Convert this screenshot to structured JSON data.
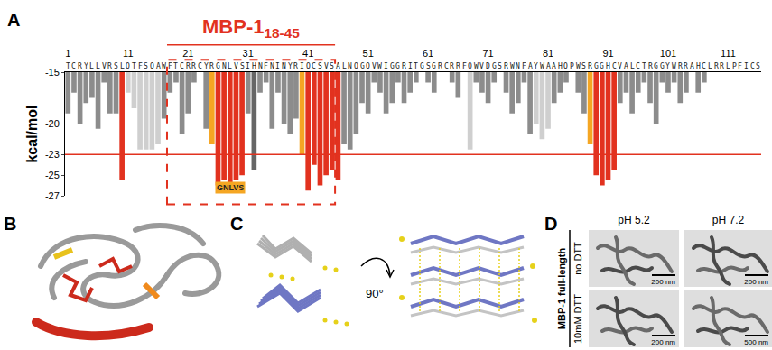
{
  "chart_data": {
    "type": "bar",
    "panel_label": "A",
    "title": "MBP-1",
    "title_subscript": "18-45",
    "y_label": "kcal/mol",
    "sequence": "TCRYLLVRSLQTFSQAWFTCRRCYRGNLVSIHNFNINYRIQCSVSALNQGQVWIGGRITGSGRCRRFQWVDGSRWNFAYWAAHQPWSRGGHCVALCTRGGYWRRAHCLRRLPFICS",
    "x": [
      1,
      2,
      3,
      4,
      5,
      6,
      7,
      8,
      9,
      10,
      11,
      12,
      13,
      14,
      15,
      16,
      17,
      18,
      19,
      20,
      21,
      22,
      23,
      24,
      25,
      26,
      27,
      28,
      29,
      30,
      31,
      32,
      33,
      34,
      35,
      36,
      37,
      38,
      39,
      40,
      41,
      42,
      43,
      44,
      45,
      46,
      47,
      48,
      49,
      50,
      51,
      52,
      53,
      54,
      55,
      56,
      57,
      58,
      59,
      60,
      61,
      62,
      63,
      64,
      65,
      66,
      67,
      68,
      69,
      70,
      71,
      72,
      73,
      74,
      75,
      76,
      77,
      78,
      79,
      80,
      81,
      82,
      83,
      84,
      85,
      86,
      87,
      88,
      89,
      90,
      91,
      92,
      93,
      94,
      95,
      96,
      97,
      98,
      99,
      100,
      101,
      102,
      103,
      104,
      105,
      106,
      107,
      108,
      109,
      110,
      111,
      112,
      113,
      114,
      115,
      116
    ],
    "values": [
      -19,
      -17,
      -20,
      -18,
      -17.5,
      -20.5,
      -16,
      -19,
      -19,
      -25.5,
      -17,
      -18.5,
      -22.5,
      -22.5,
      -22.5,
      -22,
      -19.5,
      -17,
      -16,
      -21,
      -19,
      -16,
      null,
      -20.5,
      -22,
      -26,
      -25.5,
      -26,
      -25.5,
      -25,
      -19,
      -24.5,
      -17,
      -16,
      -20.5,
      -17,
      -20,
      -21,
      -19.5,
      -23,
      -26.5,
      -24,
      -26,
      -25,
      -24.5,
      -25.5,
      -22,
      -22.5,
      -21,
      -18,
      -19,
      -16,
      -17,
      -19,
      -18,
      -16,
      -18,
      -17,
      -16,
      null,
      -16,
      -17,
      null,
      null,
      -16,
      -17.5,
      null,
      -22.5,
      -16,
      -17,
      -18,
      -16,
      null,
      -17,
      -19,
      -18,
      -16,
      -21,
      -20,
      -21.5,
      -20.5,
      -18,
      -17,
      -16,
      null,
      -17,
      -19,
      -22,
      -25,
      -26,
      -25.5,
      -24.5,
      -18,
      -17,
      -19,
      -17,
      -16,
      -18,
      -20,
      -16,
      -17,
      -16,
      -18,
      -17,
      null,
      -17,
      -16,
      null,
      null,
      null,
      null,
      null,
      null,
      null,
      null,
      null
    ],
    "colors": [
      "#8c8c8c",
      "#8c8c8c",
      "#8c8c8c",
      "#8c8c8c",
      "#8c8c8c",
      "#8c8c8c",
      "#8c8c8c",
      "#8c8c8c",
      "#8c8c8c",
      "#e2321f",
      "#cfcfcf",
      "#cfcfcf",
      "#cfcfcf",
      "#cfcfcf",
      "#cfcfcf",
      "#cfcfcf",
      "#8c8c8c",
      "#8c8c8c",
      "#8c8c8c",
      "#8c8c8c",
      "#8c8c8c",
      "#8c8c8c",
      "#8c8c8c",
      "#8c8c8c",
      "#f5a623",
      "#e2321f",
      "#e2321f",
      "#e2321f",
      "#e2321f",
      "#e2321f",
      "#8c8c8c",
      "#666666",
      "#8c8c8c",
      "#8c8c8c",
      "#8c8c8c",
      "#8c8c8c",
      "#8c8c8c",
      "#8c8c8c",
      "#8c8c8c",
      "#f5a623",
      "#e2321f",
      "#e2321f",
      "#e2321f",
      "#e2321f",
      "#e2321f",
      "#e2321f",
      "#8c8c8c",
      "#8c8c8c",
      "#8c8c8c",
      "#8c8c8c",
      "#8c8c8c",
      "#8c8c8c",
      "#8c8c8c",
      "#8c8c8c",
      "#8c8c8c",
      "#8c8c8c",
      "#8c8c8c",
      "#8c8c8c",
      "#8c8c8c",
      "#8c8c8c",
      "#8c8c8c",
      "#8c8c8c",
      "#8c8c8c",
      "#8c8c8c",
      "#8c8c8c",
      "#8c8c8c",
      "#8c8c8c",
      "#cfcfcf",
      "#8c8c8c",
      "#8c8c8c",
      "#8c8c8c",
      "#8c8c8c",
      "#8c8c8c",
      "#8c8c8c",
      "#8c8c8c",
      "#8c8c8c",
      "#8c8c8c",
      "#8c8c8c",
      "#cfcfcf",
      "#cfcfcf",
      "#cfcfcf",
      "#8c8c8c",
      "#8c8c8c",
      "#8c8c8c",
      "#8c8c8c",
      "#8c8c8c",
      "#8c8c8c",
      "#f5a623",
      "#e2321f",
      "#e2321f",
      "#e2321f",
      "#e2321f",
      "#8c8c8c",
      "#8c8c8c",
      "#8c8c8c",
      "#8c8c8c",
      "#8c8c8c",
      "#8c8c8c",
      "#8c8c8c",
      "#8c8c8c",
      "#8c8c8c",
      "#8c8c8c",
      "#8c8c8c",
      "#8c8c8c",
      "#8c8c8c",
      "#8c8c8c",
      "#8c8c8c",
      "#8c8c8c",
      "#8c8c8c",
      "#8c8c8c",
      "#8c8c8c",
      "#8c8c8c",
      "#8c8c8c",
      "#8c8c8c",
      "#8c8c8c",
      "#8c8c8c"
    ],
    "xlim": [
      0.5,
      116.5
    ],
    "xticks": [
      1,
      11,
      21,
      31,
      41,
      51,
      61,
      71,
      81,
      91,
      101,
      111
    ],
    "ylim": [
      -27,
      -15
    ],
    "yticks": [
      -15,
      -20,
      -23,
      -25,
      -27
    ],
    "threshold": -23,
    "threshold_color": "#e2321f",
    "highlight": {
      "x_start": 17.5,
      "x_end": 45.5,
      "color": "#e2321f"
    },
    "annotations": [
      {
        "text": "GNLVS",
        "x": 28,
        "y": -26.2,
        "color": "#f5a623"
      }
    ],
    "grid": false
  },
  "panels": {
    "B": {
      "label": "B"
    },
    "C": {
      "label": "C",
      "rotation_label": "90°"
    },
    "D": {
      "label": "D",
      "columns": [
        "pH 5.2",
        "pH 7.2"
      ],
      "row_group": "MBP-1 full-length",
      "rows": [
        "no DTT",
        "10mM DTT"
      ],
      "scale_bars": [
        [
          "200 nm",
          "200 nm"
        ],
        [
          "200 nm",
          "500 nm"
        ]
      ]
    }
  }
}
